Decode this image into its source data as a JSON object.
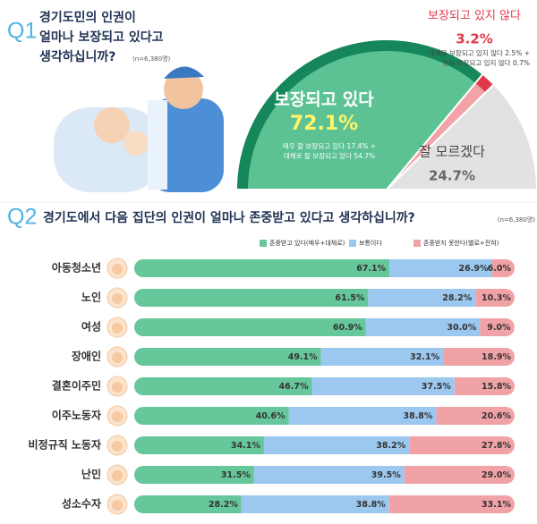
{
  "chart_data": [
    {
      "type": "pie",
      "label": "Q1",
      "title": [
        "경기도민의 인권이",
        "얼마나 보장되고 있다고",
        "생각하십니까?"
      ],
      "subtitle": "(n=6,380명)",
      "categories": [
        "보장되고 있다",
        "보장되고 있지 않다",
        "잘 모르겠다"
      ],
      "values": [
        72.1,
        3.2,
        24.7
      ],
      "value_labels": [
        "72.1%",
        "3.2%",
        "24.7%"
      ],
      "colors": [
        "#5cc293",
        "#f3a3a8",
        "#e2e2e2"
      ],
      "notes": [
        [
          "매우 잘 보장되고 있다 17.4% +",
          "대체로 잘 보장되고 있다 54.7%"
        ],
        [
          "대체로 보장되고 있지 않다 2.5% +",
          "전혀 보장되고 있지 않다 0.7%"
        ],
        []
      ]
    },
    {
      "type": "stacked-bar",
      "label": "Q2",
      "title": "경기도에서 다음 집단의 인권이 얼마나 존중받고 있다고 생각하십니까?",
      "subtitle": "(n=6,380명)",
      "categories": [
        "아동청소년",
        "노인",
        "여성",
        "장애인",
        "결혼이주민",
        "이주노동자",
        "비정규직 노동자",
        "난민",
        "성소수자"
      ],
      "xlim": [
        0,
        100
      ],
      "legend": "top-right",
      "series": [
        {
          "name": "존중받고 있다(매우+대체로)",
          "color": "#66c79a",
          "values": [
            67.1,
            61.5,
            60.9,
            49.1,
            46.7,
            40.6,
            34.1,
            31.5,
            28.2
          ],
          "value_labels": [
            "67.1%",
            "61.5%",
            "60.9%",
            "49.1%",
            "46.7%",
            "40.6%",
            "34.1%",
            "31.5%",
            "28.2%"
          ]
        },
        {
          "name": "보통이다",
          "color": "#9cc8f0",
          "values": [
            26.9,
            28.2,
            30.0,
            32.1,
            37.5,
            38.8,
            38.2,
            39.5,
            38.8
          ],
          "value_labels": [
            "26.9%",
            "28.2%",
            "30.0%",
            "32.1%",
            "37.5%",
            "38.8%",
            "38.2%",
            "39.5%",
            "38.8%"
          ]
        },
        {
          "name": "존중받지 못한다(별로+전혀)",
          "color": "#f1a2a6",
          "values": [
            6.0,
            10.3,
            9.0,
            18.9,
            15.8,
            20.6,
            27.8,
            29.0,
            33.1
          ],
          "value_labels": [
            "6.0%",
            "10.3%",
            "9.0%",
            "18.9%",
            "15.8%",
            "20.6%",
            "27.8%",
            "29.0%",
            "33.1%"
          ]
        }
      ]
    }
  ]
}
